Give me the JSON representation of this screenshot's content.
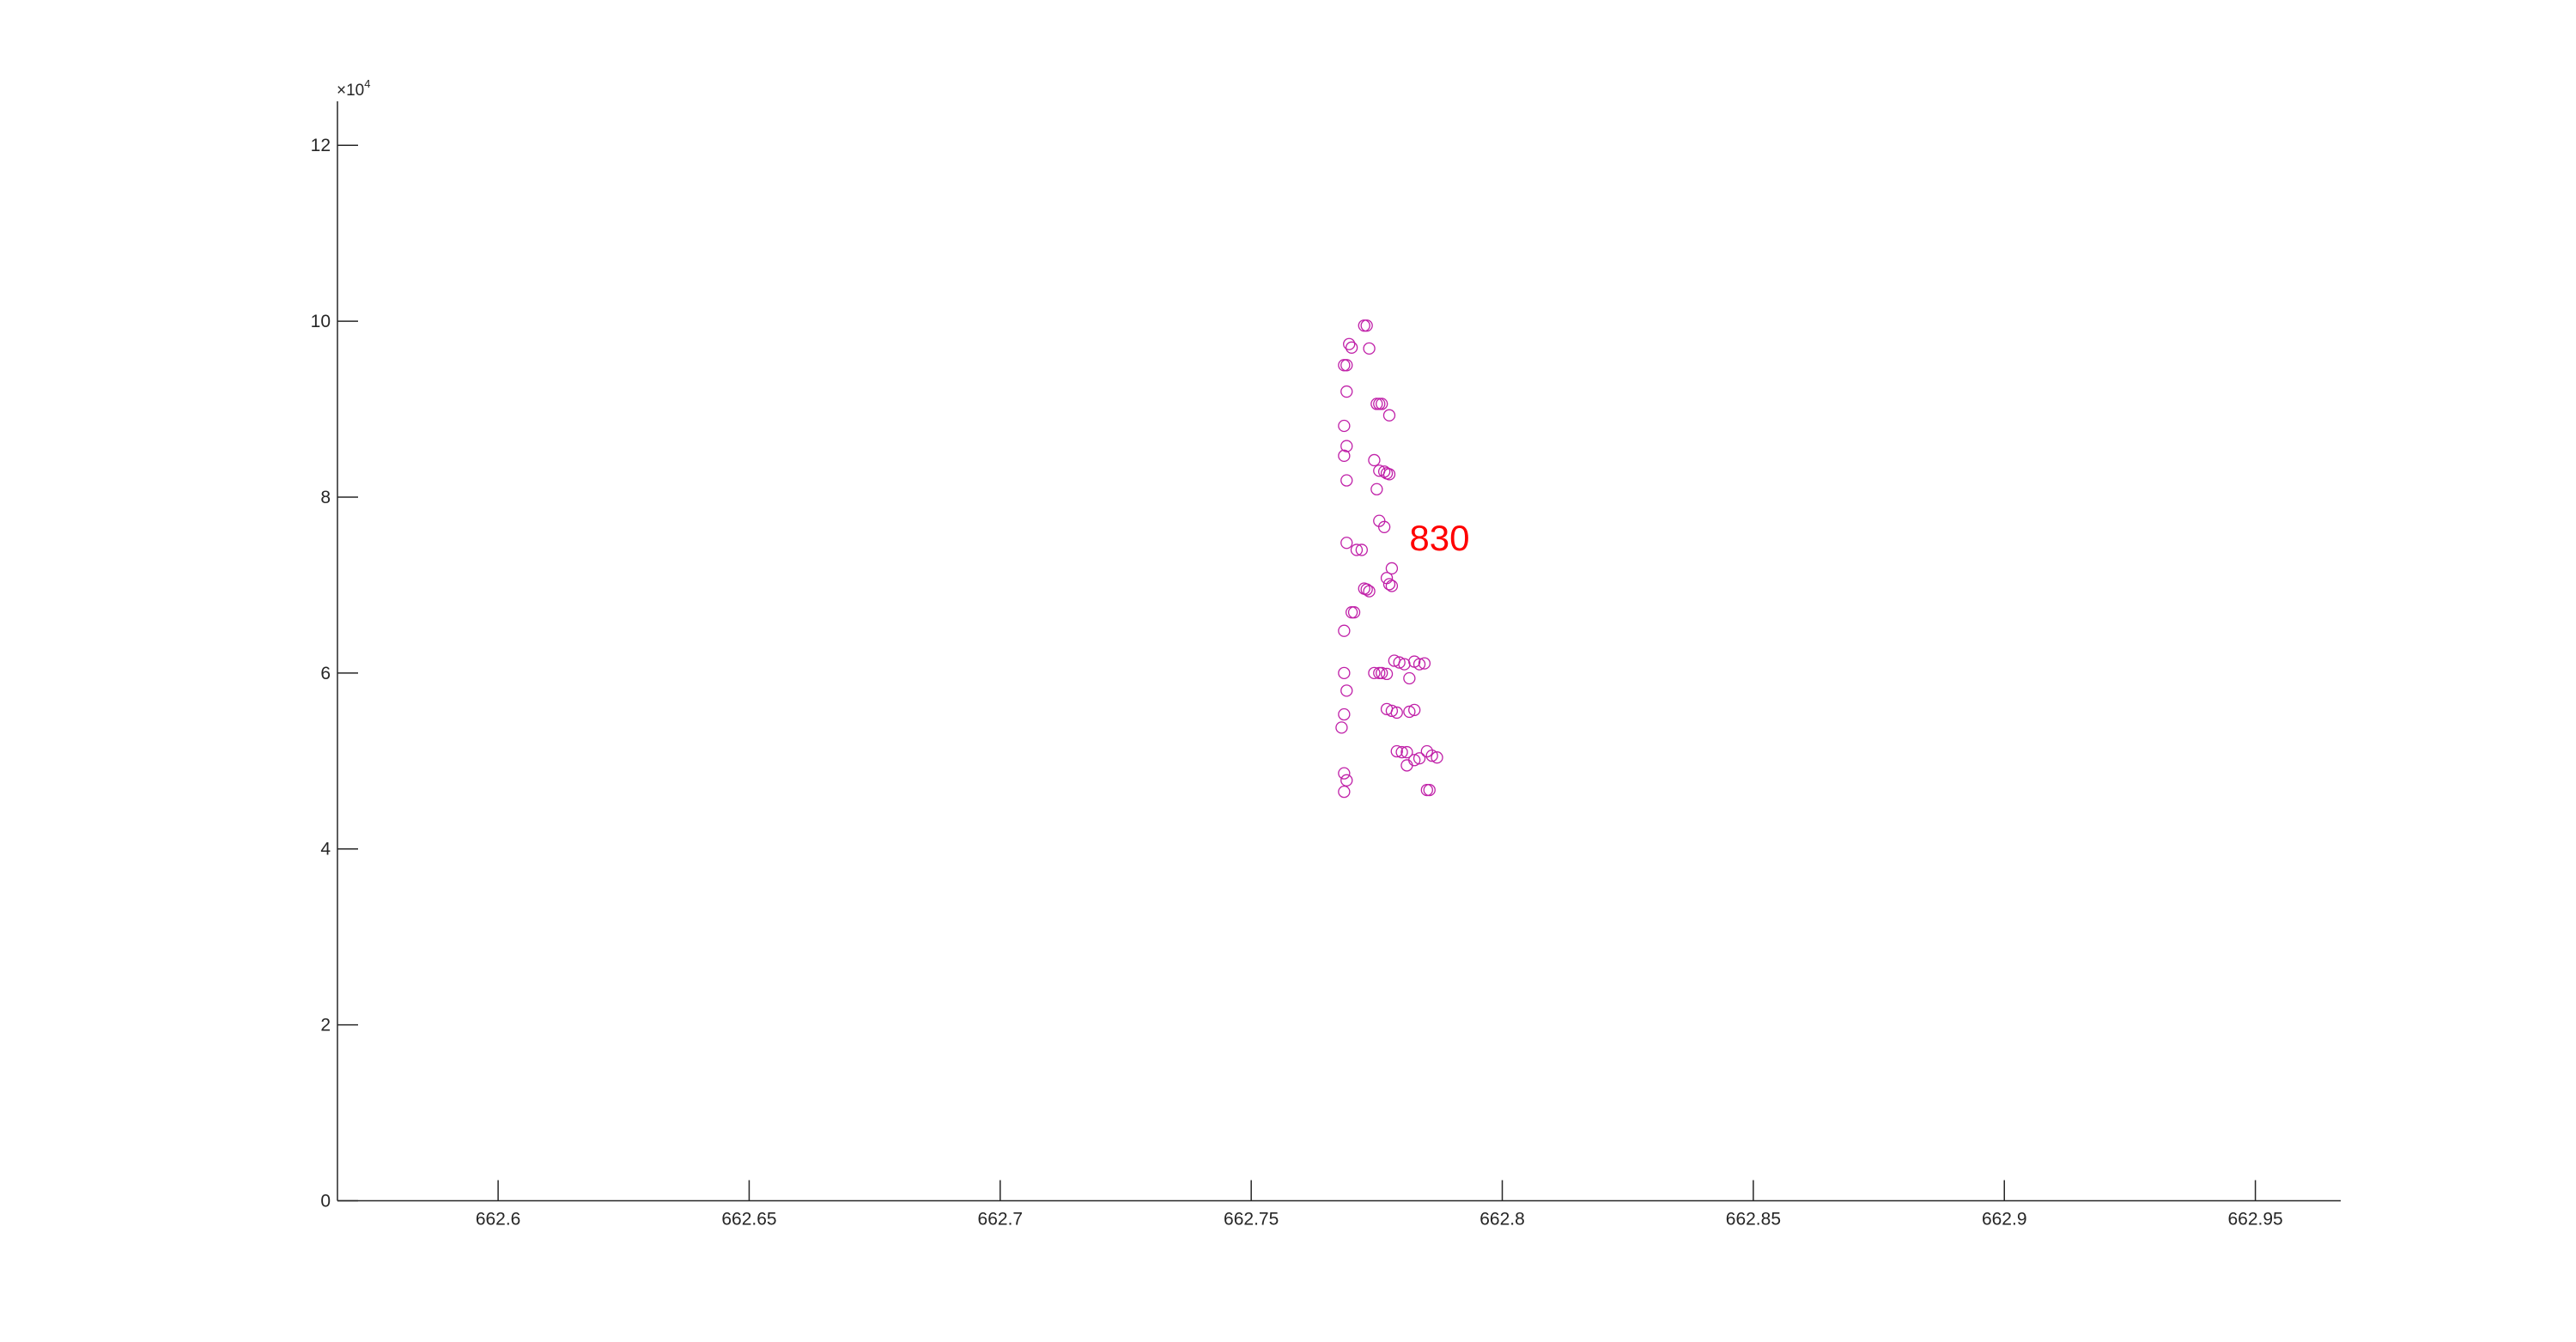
{
  "chart_data": {
    "type": "scatter",
    "title": "",
    "xlabel": "",
    "ylabel": "",
    "xlim": [
      662.568,
      662.967
    ],
    "ylim": [
      0,
      125000
    ],
    "x_ticks": [
      662.6,
      662.65,
      662.7,
      662.75,
      662.8,
      662.85,
      662.9,
      662.95
    ],
    "x_tick_labels": [
      "662.6",
      "662.65",
      "662.7",
      "662.75",
      "662.8",
      "662.85",
      "662.9",
      "662.95"
    ],
    "y_ticks": [
      0,
      20000,
      40000,
      60000,
      80000,
      100000,
      120000
    ],
    "y_tick_labels": [
      "0",
      "2",
      "4",
      "6",
      "8",
      "10",
      "12"
    ],
    "y_exponent_base": "×10",
    "y_exponent_power": "4",
    "grid": false,
    "marker": "open-circle",
    "marker_color": "#c020a8",
    "annotation": {
      "text": "830",
      "x": 662.7815,
      "y": 75400,
      "color": "#ff0000"
    },
    "series": [
      {
        "points": [
          [
            662.7725,
            99500
          ],
          [
            662.773,
            99500
          ],
          [
            662.7695,
            97400
          ],
          [
            662.77,
            97000
          ],
          [
            662.7735,
            96900
          ],
          [
            662.7685,
            95000
          ],
          [
            662.769,
            95000
          ],
          [
            662.769,
            92000
          ],
          [
            662.775,
            90600
          ],
          [
            662.7755,
            90600
          ],
          [
            662.776,
            90600
          ],
          [
            662.7775,
            89300
          ],
          [
            662.7685,
            88100
          ],
          [
            662.769,
            85800
          ],
          [
            662.7685,
            84700
          ],
          [
            662.7745,
            84200
          ],
          [
            662.7755,
            83000
          ],
          [
            662.7765,
            82900
          ],
          [
            662.777,
            82700
          ],
          [
            662.7775,
            82600
          ],
          [
            662.769,
            81900
          ],
          [
            662.775,
            80900
          ],
          [
            662.7755,
            77300
          ],
          [
            662.7765,
            76600
          ],
          [
            662.769,
            74800
          ],
          [
            662.771,
            74000
          ],
          [
            662.772,
            74000
          ],
          [
            662.778,
            71900
          ],
          [
            662.777,
            70800
          ],
          [
            662.7775,
            70100
          ],
          [
            662.778,
            69900
          ],
          [
            662.7725,
            69600
          ],
          [
            662.773,
            69500
          ],
          [
            662.7735,
            69300
          ],
          [
            662.77,
            66900
          ],
          [
            662.7705,
            66900
          ],
          [
            662.7685,
            64800
          ],
          [
            662.7785,
            61400
          ],
          [
            662.7795,
            61200
          ],
          [
            662.7805,
            61000
          ],
          [
            662.7825,
            61300
          ],
          [
            662.7835,
            61000
          ],
          [
            662.7845,
            61100
          ],
          [
            662.7685,
            60000
          ],
          [
            662.7745,
            60000
          ],
          [
            662.7755,
            60000
          ],
          [
            662.776,
            60000
          ],
          [
            662.777,
            59900
          ],
          [
            662.7815,
            59400
          ],
          [
            662.769,
            58000
          ],
          [
            662.777,
            55900
          ],
          [
            662.778,
            55700
          ],
          [
            662.779,
            55500
          ],
          [
            662.7815,
            55600
          ],
          [
            662.7825,
            55800
          ],
          [
            662.7685,
            55300
          ],
          [
            662.768,
            53800
          ],
          [
            662.779,
            51100
          ],
          [
            662.78,
            51000
          ],
          [
            662.781,
            51000
          ],
          [
            662.785,
            51100
          ],
          [
            662.786,
            50600
          ],
          [
            662.787,
            50400
          ],
          [
            662.7835,
            50300
          ],
          [
            662.7825,
            50100
          ],
          [
            662.781,
            49500
          ],
          [
            662.7685,
            48600
          ],
          [
            662.769,
            47800
          ],
          [
            662.7685,
            46500
          ],
          [
            662.785,
            46700
          ],
          [
            662.7855,
            46700
          ]
        ]
      }
    ]
  }
}
